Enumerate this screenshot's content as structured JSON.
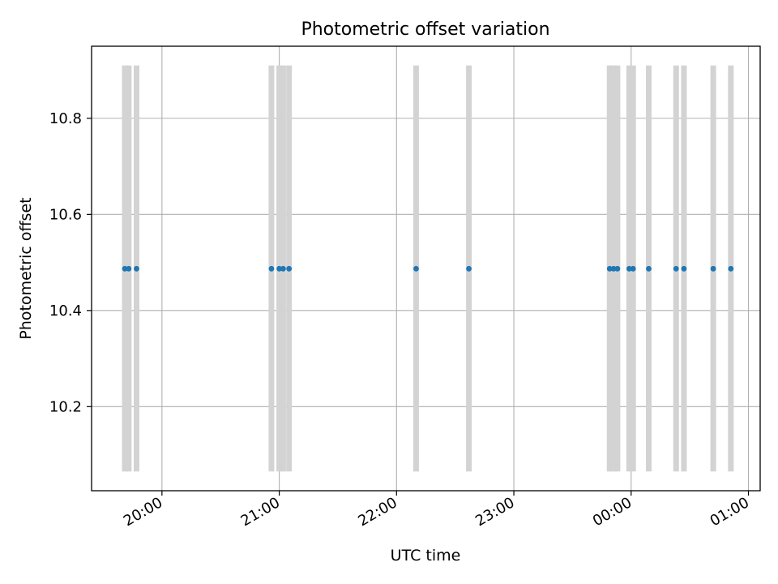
{
  "chart_data": {
    "type": "scatter",
    "title": "Photometric offset variation",
    "xlabel": "UTC time",
    "ylabel": "Photometric offset",
    "x_ticks": [
      {
        "value": "20:00",
        "label": "20:00"
      },
      {
        "value": "21:00",
        "label": "21:00"
      },
      {
        "value": "22:00",
        "label": "22:00"
      },
      {
        "value": "23:00",
        "label": "23:00"
      },
      {
        "value": "00:00",
        "label": "00:00"
      },
      {
        "value": "01:00",
        "label": "01:00"
      }
    ],
    "y_ticks": [
      {
        "value": 10.2,
        "label": "10.2"
      },
      {
        "value": 10.4,
        "label": "10.4"
      },
      {
        "value": 10.6,
        "label": "10.6"
      },
      {
        "value": 10.8,
        "label": "10.8"
      }
    ],
    "xlim": [
      "19:24",
      "01:06"
    ],
    "ylim": [
      10.025,
      10.95
    ],
    "grid": true,
    "band_ylim": [
      10.065,
      10.91
    ],
    "band_color": "#d3d3d3",
    "marker_color": "#1f77b4",
    "bands": [
      "19:41",
      "19:43",
      "19:47",
      "20:56",
      "21:00",
      "21:02",
      "21:05",
      "22:10",
      "22:37",
      "23:49",
      "23:51",
      "23:53",
      "23:59",
      "00:01",
      "00:09",
      "00:23",
      "00:27",
      "00:42",
      "00:51"
    ],
    "points": [
      {
        "x": "19:41",
        "y": 10.487
      },
      {
        "x": "19:43",
        "y": 10.487
      },
      {
        "x": "19:47",
        "y": 10.487
      },
      {
        "x": "20:56",
        "y": 10.487
      },
      {
        "x": "21:00",
        "y": 10.487
      },
      {
        "x": "21:02",
        "y": 10.487
      },
      {
        "x": "21:05",
        "y": 10.487
      },
      {
        "x": "22:10",
        "y": 10.487
      },
      {
        "x": "22:37",
        "y": 10.487
      },
      {
        "x": "23:49",
        "y": 10.487
      },
      {
        "x": "23:51",
        "y": 10.487
      },
      {
        "x": "23:53",
        "y": 10.487
      },
      {
        "x": "23:59",
        "y": 10.487
      },
      {
        "x": "00:01",
        "y": 10.487
      },
      {
        "x": "00:09",
        "y": 10.487
      },
      {
        "x": "00:23",
        "y": 10.487
      },
      {
        "x": "00:27",
        "y": 10.487
      },
      {
        "x": "00:42",
        "y": 10.487
      },
      {
        "x": "00:51",
        "y": 10.487
      }
    ]
  }
}
